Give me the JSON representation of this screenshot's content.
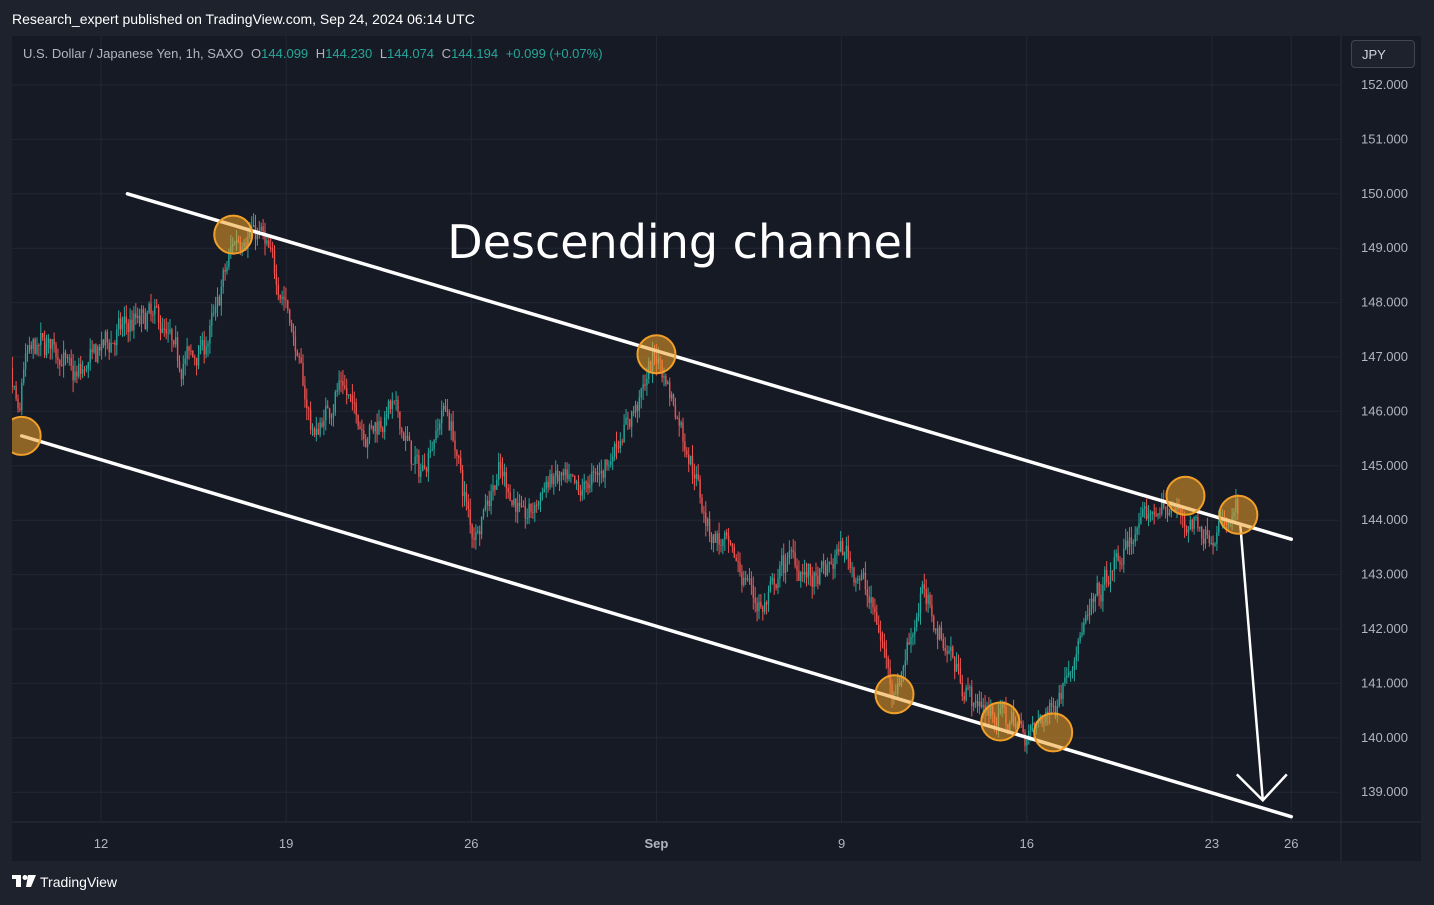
{
  "publisher_line": "Research_expert published on TradingView.com, Sep 24, 2024 06:14 UTC",
  "legend": {
    "symbol": "U.S. Dollar / Japanese Yen, 1h, SAXO",
    "open_label": "O",
    "open": "144.099",
    "high_label": "H",
    "high": "144.230",
    "low_label": "L",
    "low": "144.074",
    "close_label": "C",
    "close": "144.194",
    "change": "+0.099 (+0.07%)"
  },
  "currency_badge": "JPY",
  "brand": "TradingView",
  "colors": {
    "up": "#26a69a",
    "down": "#ef5350",
    "marker": "#f0a028",
    "line": "#ffffff",
    "text": "#b2b5be",
    "grid": "#232734"
  },
  "chart_data": {
    "type": "candlestick",
    "instrument": "USD/JPY",
    "timeframe": "1h",
    "annotation": "Descending channel",
    "y_ticks": [
      "152.000",
      "151.000",
      "150.000",
      "149.000",
      "148.000",
      "147.000",
      "146.000",
      "145.000",
      "144.000",
      "143.000",
      "142.000",
      "141.000",
      "140.000",
      "139.000"
    ],
    "x_ticks": [
      "12",
      "19",
      "26",
      "Sep",
      "9",
      "16",
      "23",
      "26"
    ],
    "ylim": [
      138.6,
      152.3
    ],
    "x_dates": [
      "2024-08-12",
      "2024-08-19",
      "2024-08-26",
      "2024-09-02",
      "2024-09-09",
      "2024-09-16",
      "2024-09-23",
      "2024-09-26"
    ],
    "price_path": [
      [
        "2024-08-08",
        147.7
      ],
      [
        "2024-08-09",
        145.6
      ],
      [
        "2024-08-09",
        147.0
      ],
      [
        "2024-08-10",
        147.3
      ],
      [
        "2024-08-11",
        146.6
      ],
      [
        "2024-08-12",
        147.2
      ],
      [
        "2024-08-13",
        147.6
      ],
      [
        "2024-08-14",
        147.8
      ],
      [
        "2024-08-15",
        146.9
      ],
      [
        "2024-08-16",
        147.3
      ],
      [
        "2024-08-17",
        149.2
      ],
      [
        "2024-08-18",
        149.3
      ],
      [
        "2024-08-19",
        147.9
      ],
      [
        "2024-08-20",
        145.5
      ],
      [
        "2024-08-21",
        146.5
      ],
      [
        "2024-08-22",
        145.6
      ],
      [
        "2024-08-23",
        146.1
      ],
      [
        "2024-08-24",
        144.8
      ],
      [
        "2024-08-25",
        146.2
      ],
      [
        "2024-08-26",
        143.7
      ],
      [
        "2024-08-27",
        144.9
      ],
      [
        "2024-08-28",
        144.0
      ],
      [
        "2024-08-29",
        144.8
      ],
      [
        "2024-08-30",
        144.5
      ],
      [
        "2024-08-31",
        145.0
      ],
      [
        "2024-09-01",
        145.9
      ],
      [
        "2024-09-02",
        147.1
      ],
      [
        "2024-09-03",
        145.5
      ],
      [
        "2024-09-04",
        143.8
      ],
      [
        "2024-09-05",
        143.2
      ],
      [
        "2024-09-06",
        142.3
      ],
      [
        "2024-09-07",
        143.4
      ],
      [
        "2024-09-08",
        142.8
      ],
      [
        "2024-09-09",
        143.5
      ],
      [
        "2024-09-10",
        142.6
      ],
      [
        "2024-09-11",
        140.8
      ],
      [
        "2024-09-12",
        142.7
      ],
      [
        "2024-09-13",
        141.6
      ],
      [
        "2024-09-14",
        140.6
      ],
      [
        "2024-09-15",
        140.4
      ],
      [
        "2024-09-16",
        140.1
      ],
      [
        "2024-09-17",
        140.6
      ],
      [
        "2024-09-18",
        141.9
      ],
      [
        "2024-09-19",
        142.9
      ],
      [
        "2024-09-20",
        143.7
      ],
      [
        "2024-09-21",
        144.3
      ],
      [
        "2024-09-22",
        144.0
      ],
      [
        "2024-09-23",
        143.7
      ],
      [
        "2024-09-24",
        144.19
      ]
    ],
    "channel_upper": [
      [
        "2024-08-13",
        150.0
      ],
      [
        "2024-09-26",
        143.65
      ]
    ],
    "channel_lower": [
      [
        "2024-08-09",
        145.55
      ],
      [
        "2024-09-26",
        138.55
      ]
    ],
    "projection_arrow": [
      [
        "2024-09-24",
        143.9
      ],
      [
        "2024-09-25",
        138.85
      ]
    ],
    "touch_points": [
      [
        "2024-08-09",
        145.55
      ],
      [
        "2024-08-17",
        149.25
      ],
      [
        "2024-09-02",
        147.05
      ],
      [
        "2024-09-11",
        140.8
      ],
      [
        "2024-09-15",
        140.3
      ],
      [
        "2024-09-17",
        140.1
      ],
      [
        "2024-09-22",
        144.45
      ],
      [
        "2024-09-24",
        144.1
      ]
    ]
  }
}
